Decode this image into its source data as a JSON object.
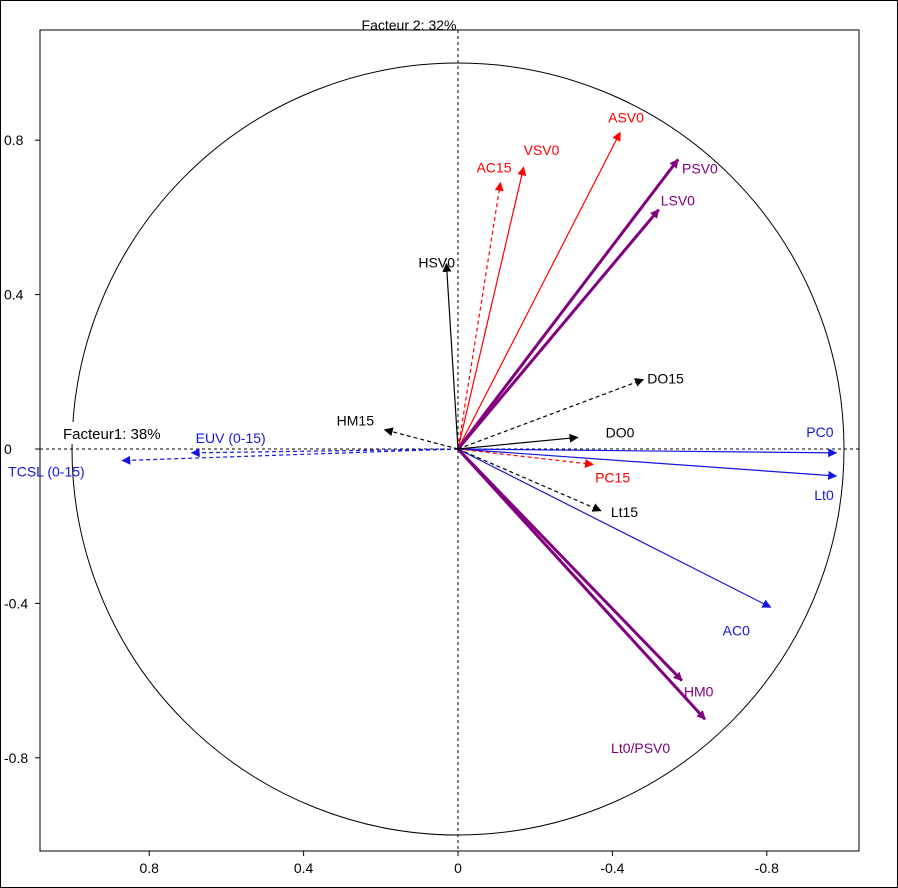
{
  "chart_data": {
    "type": "scatter",
    "subtype": "correlation-circle",
    "title": "",
    "xlabel": "Facteur1: 38%",
    "ylabel": "Facteur 2: 32%",
    "x_reversed": true,
    "xlim": [
      -1.02,
      1.02
    ],
    "ylim": [
      -1.0,
      1.0
    ],
    "x_ticks": [
      0.8,
      0.4,
      0,
      -0.4,
      -0.8
    ],
    "x_tick_labels": [
      "0.8",
      "0.4",
      "0",
      "-0.4",
      "-0.8"
    ],
    "y_ticks": [
      0.8,
      0.4,
      0,
      -0.4,
      -0.8
    ],
    "y_tick_labels": [
      "0.8",
      "0.4",
      "0",
      "-0.4",
      "-0.8"
    ],
    "grid": false,
    "unit_circle": true,
    "vectors": [
      {
        "label": "PC0",
        "x": -0.98,
        "y": -0.01,
        "color": "#1515e0",
        "style": "solid"
      },
      {
        "label": "Lt0",
        "x": -0.98,
        "y": -0.07,
        "color": "#1515e0",
        "style": "solid"
      },
      {
        "label": "AC0",
        "x": -0.81,
        "y": -0.41,
        "color": "#1515e0",
        "style": "solid"
      },
      {
        "label": "EUV (0-15)",
        "x": 0.69,
        "y": -0.01,
        "color": "#1515e0",
        "style": "dashed"
      },
      {
        "label": "TCSL (0-15)",
        "x": 0.87,
        "y": -0.03,
        "color": "#1515e0",
        "style": "dashed"
      },
      {
        "label": "ASV0",
        "x": -0.42,
        "y": 0.82,
        "color": "#ff0000",
        "style": "solid"
      },
      {
        "label": "VSV0",
        "x": -0.17,
        "y": 0.73,
        "color": "#ff0000",
        "style": "solid"
      },
      {
        "label": "AC15",
        "x": -0.11,
        "y": 0.69,
        "color": "#ff0000",
        "style": "dashed"
      },
      {
        "label": "PC15",
        "x": -0.35,
        "y": -0.04,
        "color": "#ff0000",
        "style": "dashed"
      },
      {
        "label": "PSV0",
        "x": -0.57,
        "y": 0.75,
        "color": "#800080",
        "style": "bold"
      },
      {
        "label": "LSV0",
        "x": -0.52,
        "y": 0.62,
        "color": "#800080",
        "style": "bold"
      },
      {
        "label": "HM0",
        "x": -0.58,
        "y": -0.6,
        "color": "#800080",
        "style": "bold"
      },
      {
        "label": "Lt0/PSV0",
        "x": -0.64,
        "y": -0.7,
        "color": "#800080",
        "style": "bold"
      },
      {
        "label": "HSV0",
        "x": 0.03,
        "y": 0.48,
        "color": "#000000",
        "style": "solid"
      },
      {
        "label": "DO0",
        "x": -0.31,
        "y": 0.03,
        "color": "#000000",
        "style": "solid"
      },
      {
        "label": "DO15",
        "x": -0.48,
        "y": 0.18,
        "color": "#000000",
        "style": "dashed"
      },
      {
        "label": "HM15",
        "x": 0.19,
        "y": 0.05,
        "color": "#000000",
        "style": "dashed"
      },
      {
        "label": "Lt15",
        "x": -0.37,
        "y": -0.16,
        "color": "#000000",
        "style": "dashed"
      }
    ]
  }
}
